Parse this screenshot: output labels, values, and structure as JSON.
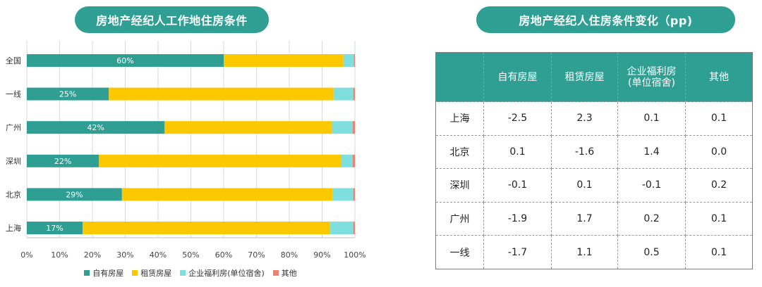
{
  "titles": {
    "left": "房地产经纪人工作地住房条件",
    "right": "房地产经纪人住房条件变化（pp)"
  },
  "chart_data": {
    "type": "bar",
    "orientation": "horizontal",
    "stacked": true,
    "categories": [
      "全国",
      "一线",
      "广州",
      "深圳",
      "北京",
      "上海"
    ],
    "series": [
      {
        "name": "自有房屋",
        "color": "#2f9f93",
        "values": [
          60,
          25,
          42,
          22,
          29,
          17
        ],
        "labels": [
          "60%",
          "25%",
          "42%",
          "22%",
          "29%",
          "17%"
        ]
      },
      {
        "name": "租赁房屋",
        "color": "#fcc800",
        "values": [
          36.5,
          68.5,
          51,
          73.8,
          64.3,
          75.5
        ]
      },
      {
        "name": "企业福利房(单位宿舍)",
        "color": "#7fdfdf",
        "values": [
          3.2,
          6,
          6.3,
          3.5,
          6.2,
          7
        ]
      },
      {
        "name": "其他",
        "color": "#f08070",
        "values": [
          0.3,
          0.5,
          0.7,
          0.7,
          0.5,
          0.5
        ]
      }
    ],
    "xlim": [
      0,
      100
    ],
    "xticks": [
      "0%",
      "10%",
      "20%",
      "30%",
      "40%",
      "50%",
      "60%",
      "70%",
      "80%",
      "90%",
      "100%"
    ],
    "grid": "vertical",
    "legend": "bottom"
  },
  "table": {
    "headers": [
      "",
      "自有房屋",
      "租赁房屋",
      "企业福利房\n(单位宿舍)",
      "其他"
    ],
    "rows": [
      [
        "上海",
        "-2.5",
        "2.3",
        "0.1",
        "0.1"
      ],
      [
        "北京",
        "0.1",
        "-1.6",
        "1.4",
        "0.0"
      ],
      [
        "深圳",
        "-0.1",
        "0.1",
        "-0.1",
        "0.2"
      ],
      [
        "广州",
        "-1.9",
        "1.7",
        "0.2",
        "0.1"
      ],
      [
        "一线",
        "-1.7",
        "1.1",
        "0.5",
        "0.1"
      ]
    ]
  }
}
